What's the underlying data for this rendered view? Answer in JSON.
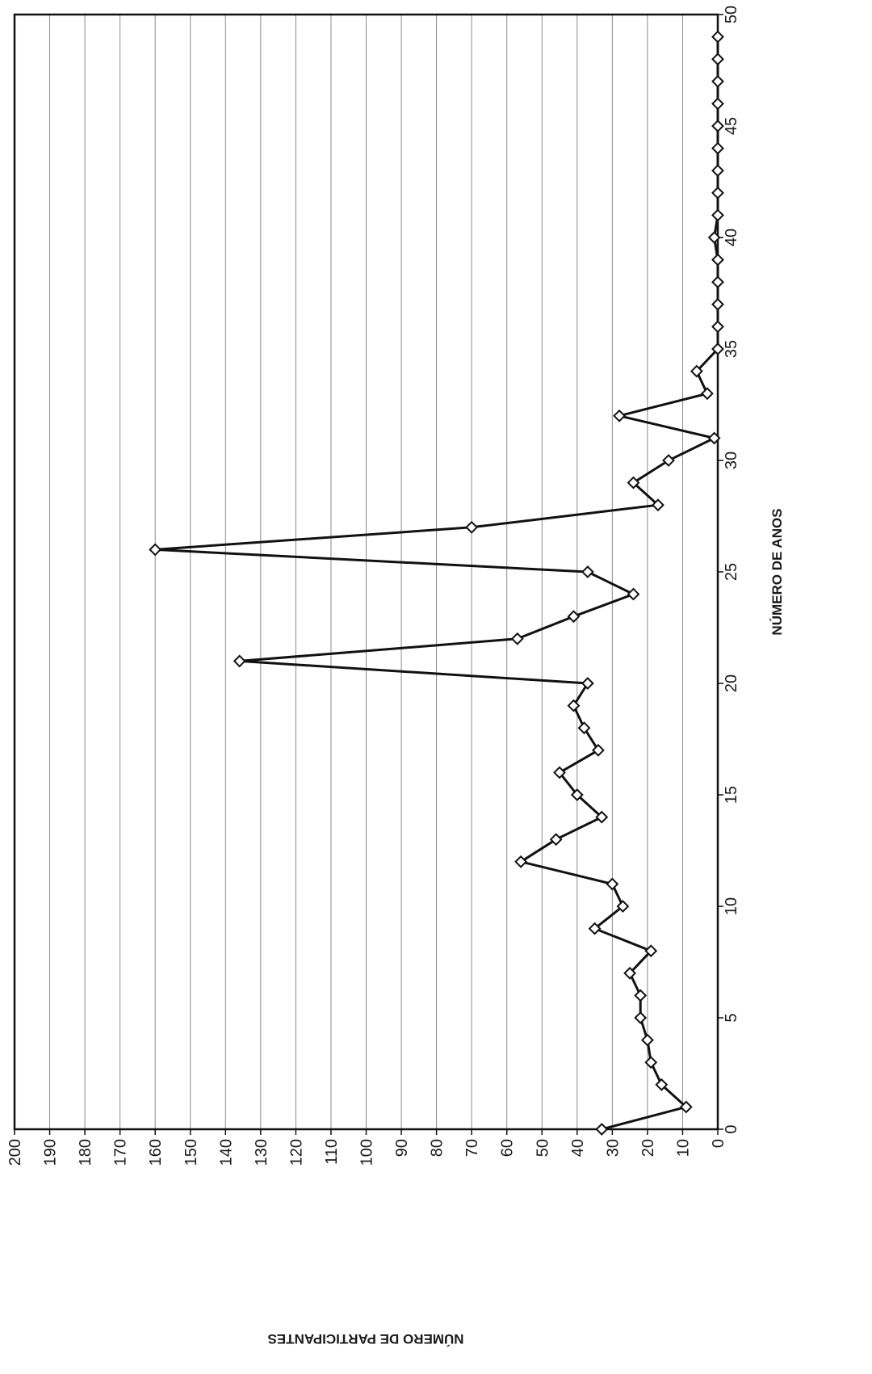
{
  "chart_data": {
    "type": "line",
    "orientation": "rotated-90-clockwise",
    "title": "",
    "xlabel": "NÚMERO DE ANOS",
    "ylabel": "NÚMERO DE PARTICIPANTES",
    "xlim": [
      0,
      50
    ],
    "ylim": [
      0,
      200
    ],
    "x_ticks": [
      0,
      5,
      10,
      15,
      20,
      25,
      30,
      35,
      40,
      45,
      50
    ],
    "y_ticks": [
      0,
      10,
      20,
      30,
      40,
      50,
      60,
      70,
      80,
      90,
      100,
      110,
      120,
      130,
      140,
      150,
      160,
      170,
      180,
      190,
      200
    ],
    "grid": "horizontal-value-lines",
    "marker": "diamond",
    "line_color": "#111111",
    "marker_fill": "#ffffff",
    "series": [
      {
        "x": [
          0,
          1,
          2,
          3,
          4,
          5,
          6,
          7,
          8,
          9,
          10,
          11,
          12,
          13,
          14,
          15,
          16,
          17,
          18,
          19,
          20,
          21,
          22,
          23,
          24,
          25,
          26,
          27,
          28,
          29,
          30,
          31,
          32,
          33,
          34,
          35,
          36,
          37,
          38,
          39,
          40,
          41,
          42,
          43,
          44,
          45,
          46,
          47,
          48,
          49
        ],
        "values": [
          33,
          9,
          16,
          19,
          20,
          22,
          22,
          25,
          19,
          35,
          27,
          30,
          56,
          46,
          33,
          40,
          45,
          34,
          38,
          41,
          37,
          136,
          57,
          41,
          24,
          37,
          160,
          70,
          17,
          24,
          14,
          1,
          28,
          3,
          6,
          0,
          0,
          0,
          0,
          0,
          1,
          0,
          0,
          0,
          0,
          0,
          0,
          0,
          0,
          0
        ]
      }
    ]
  }
}
